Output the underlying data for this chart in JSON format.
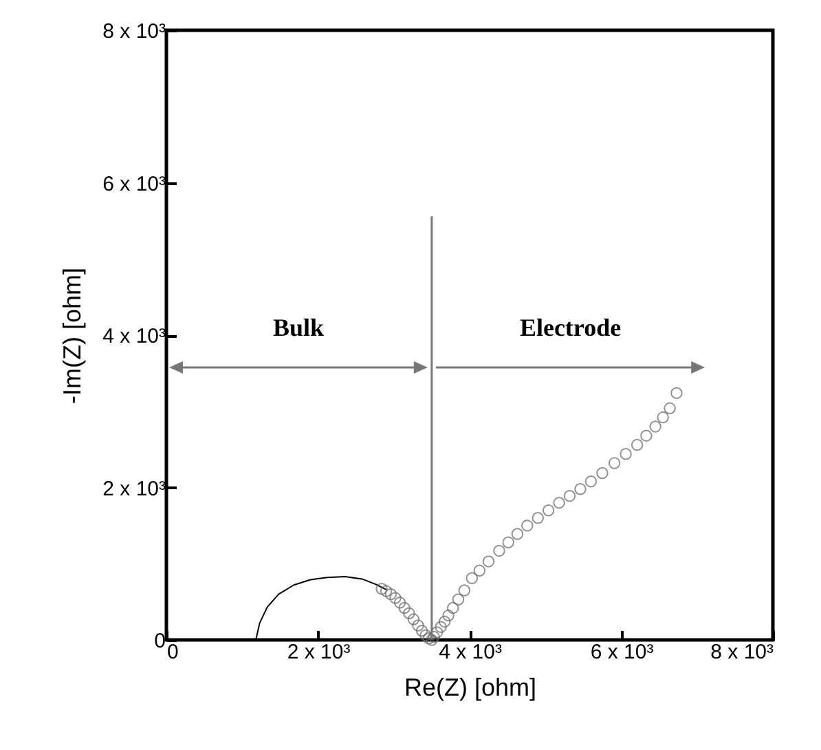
{
  "chart_data": {
    "type": "scatter",
    "xlabel": "Re(Z) [ohm]",
    "ylabel": "-Im(Z) [ohm]",
    "xlim": [
      0,
      8000
    ],
    "ylim": [
      0,
      8000
    ],
    "xticks": [
      0,
      {
        "value": 2000,
        "label": "2 x 10³"
      },
      {
        "value": 4000,
        "label": "4 x 10³"
      },
      {
        "value": 6000,
        "label": "6 x 10³"
      },
      {
        "value": 8000,
        "label": "8 x 10³"
      }
    ],
    "yticks": [
      0,
      {
        "value": 2000,
        "label": "2 x 10³"
      },
      {
        "value": 4000,
        "label": "4 x 10³"
      },
      {
        "value": 6000,
        "label": "6 x 10³"
      },
      {
        "value": 8000,
        "label": "8 x 10³"
      }
    ],
    "grid": false,
    "series": [
      {
        "type": "line",
        "color": "#000000",
        "line_style": "solid",
        "marker": "none",
        "x": [
          1180,
          1230,
          1330,
          1480,
          1680,
          1900,
          2120,
          2360,
          2580,
          2760,
          2900
        ],
        "values": [
          0,
          220,
          430,
          600,
          720,
          790,
          820,
          830,
          800,
          730,
          660
        ]
      },
      {
        "color": "#666666",
        "marker": "circle",
        "x": [
          2840,
          2900,
          2960,
          3020,
          3080,
          3140,
          3200,
          3260,
          3320,
          3370,
          3420,
          3460,
          3500,
          3530,
          3570,
          3620,
          3670,
          3720,
          3780,
          3850,
          3930,
          4030,
          4130,
          4250,
          4390,
          4510,
          4630,
          4760,
          4900,
          5040,
          5180,
          5320,
          5460,
          5600,
          5750,
          5910,
          6060,
          6210,
          6330,
          6450,
          6550,
          6640,
          6730
        ],
        "values": [
          670,
          640,
          600,
          550,
          490,
          420,
          350,
          270,
          190,
          120,
          60,
          20,
          0,
          40,
          100,
          170,
          240,
          320,
          420,
          530,
          650,
          810,
          910,
          1030,
          1170,
          1280,
          1390,
          1500,
          1600,
          1700,
          1800,
          1890,
          1980,
          2080,
          2190,
          2320,
          2440,
          2560,
          2680,
          2800,
          2920,
          3040,
          3240
        ]
      }
    ],
    "ref_lines": [
      {
        "axis": "x",
        "value": 3500,
        "color": "#777777"
      }
    ],
    "annotations": [
      "Bulk",
      "Electrode"
    ]
  }
}
